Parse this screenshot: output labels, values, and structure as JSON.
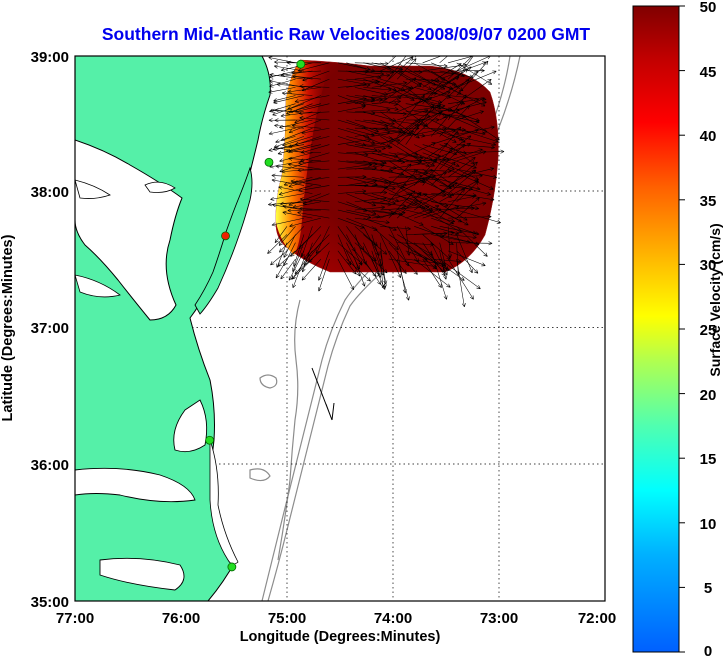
{
  "title": "Southern Mid-Atlantic Raw Velocities 2008/09/07 0200 GMT",
  "colors": {
    "title": "#0000ee",
    "land": "#55f0a8",
    "coast": "#000000",
    "bathymetry": "#8c8c8c",
    "station_ok": "#22dd22",
    "station_down": "#ee2200",
    "arrow": "#000000"
  },
  "map": {
    "xlabel": "Longitude (Degrees:Minutes)",
    "ylabel": "Latitude (Degrees:Minutes)",
    "lon_range": [
      -77,
      -72
    ],
    "lat_range": [
      35,
      39
    ],
    "x_ticks": [
      "77:00",
      "76:00",
      "75:00",
      "74:00",
      "73:00",
      "72:00"
    ],
    "y_ticks": [
      "39:00",
      "38:00",
      "37:00",
      "36:00",
      "35:00"
    ],
    "grid": "dotted",
    "stations": [
      {
        "lon": -74.87,
        "lat": 38.94,
        "status": "ok"
      },
      {
        "lon": -75.17,
        "lat": 38.22,
        "status": "ok"
      },
      {
        "lon": -75.58,
        "lat": 37.68,
        "status": "down"
      },
      {
        "lon": -75.73,
        "lat": 36.18,
        "status": "ok"
      },
      {
        "lon": -75.52,
        "lat": 35.25,
        "status": "ok"
      }
    ]
  },
  "colorbar": {
    "label": "Surface Velocity (cm/s)",
    "min": 0,
    "max": 50,
    "ticks": [
      "0",
      "5",
      "10",
      "15",
      "20",
      "25",
      "30",
      "35",
      "40",
      "45",
      "50"
    ]
  },
  "chart_data": {
    "type": "heatmap",
    "title": "Southern Mid-Atlantic Raw Velocities 2008/09/07 0200 GMT",
    "xlabel": "Longitude (Degrees:Minutes)",
    "ylabel": "Latitude (Degrees:Minutes)",
    "xlim": [
      -77,
      -72
    ],
    "ylim": [
      35,
      39
    ],
    "colorbar_range_cm_s": [
      0,
      50
    ],
    "scale_arrow": {
      "lon": -74.75,
      "lat": 36.45,
      "dir_deg": 155
    }
  }
}
